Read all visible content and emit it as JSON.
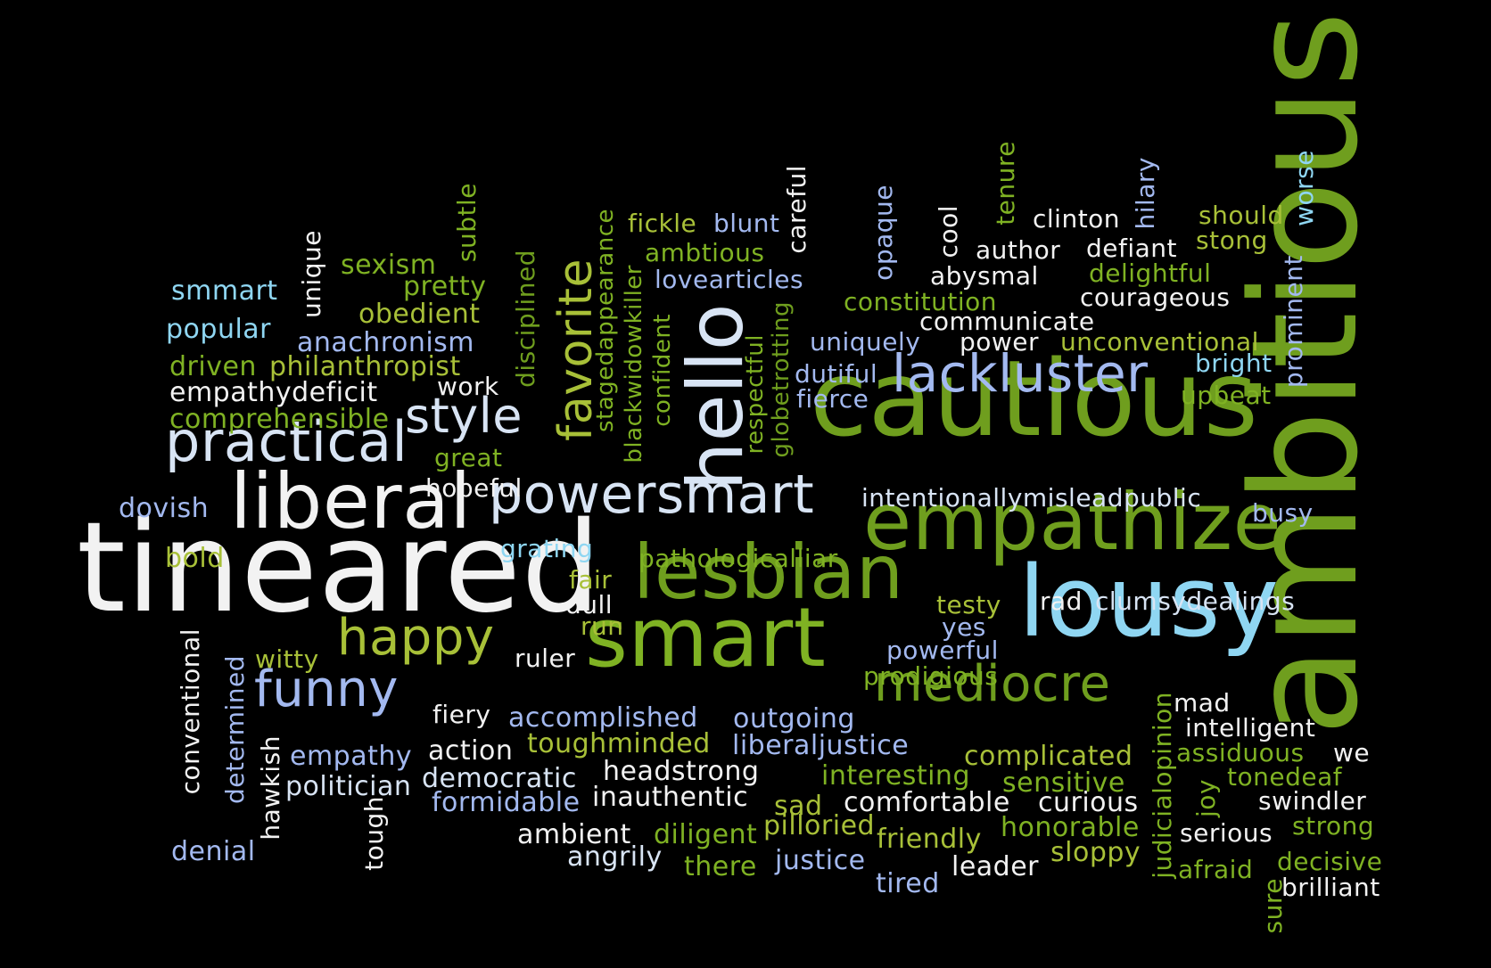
{
  "palette": [
    "#f2f2f2",
    "#7fb223",
    "#8fd6f2",
    "#a3b9f0",
    "#a8c038",
    "#6f9e1e",
    "#d8e4f4"
  ],
  "words": [
    {
      "id": "tineared",
      "text": "tineared",
      "c": 0
    },
    {
      "id": "ambitious",
      "text": "ambitious",
      "c": 5
    },
    {
      "id": "cautious",
      "text": "cautious",
      "c": 5
    },
    {
      "id": "lousy",
      "text": "lousy",
      "c": 2
    },
    {
      "id": "empathize",
      "text": "empathize",
      "c": 5
    },
    {
      "id": "liberal",
      "text": "liberal",
      "c": 0
    },
    {
      "id": "smart",
      "text": "smart",
      "c": 1
    },
    {
      "id": "lesbian",
      "text": "lesbian",
      "c": 5
    },
    {
      "id": "powersmart",
      "text": "powersmart",
      "c": 6
    },
    {
      "id": "hello",
      "text": "hello",
      "c": 6
    },
    {
      "id": "practical",
      "text": "practical",
      "c": 6
    },
    {
      "id": "mediocre",
      "text": "mediocre",
      "c": 5
    },
    {
      "id": "lackluster",
      "text": "lackluster",
      "c": 3
    },
    {
      "id": "style",
      "text": "style",
      "c": 6
    },
    {
      "id": "happy",
      "text": "happy",
      "c": 4
    },
    {
      "id": "funny",
      "text": "funny",
      "c": 3
    },
    {
      "id": "favorite",
      "text": "favorite",
      "c": 4
    },
    {
      "id": "intentionallymisleadpublic",
      "text": "intentionallymisleadpublic",
      "c": 6
    },
    {
      "id": "pathologicalliar",
      "text": "pathologicalliar",
      "c": 1
    },
    {
      "id": "clumsydealings",
      "text": "clumsydealings",
      "c": 6
    },
    {
      "id": "smmart",
      "text": "smmart",
      "c": 2
    },
    {
      "id": "popular",
      "text": "popular",
      "c": 2
    },
    {
      "id": "sexism",
      "text": "sexism",
      "c": 1
    },
    {
      "id": "pretty",
      "text": "pretty",
      "c": 1
    },
    {
      "id": "obedient",
      "text": "obedient",
      "c": 4
    },
    {
      "id": "anachronism",
      "text": "anachronism",
      "c": 3
    },
    {
      "id": "driven",
      "text": "driven",
      "c": 1
    },
    {
      "id": "philanthropist",
      "text": "philanthropist",
      "c": 4
    },
    {
      "id": "empathydeficit",
      "text": "empathydeficit",
      "c": 0
    },
    {
      "id": "comprehensible",
      "text": "comprehensible",
      "c": 1
    },
    {
      "id": "work",
      "text": "work",
      "c": 0
    },
    {
      "id": "great",
      "text": "great",
      "c": 1
    },
    {
      "id": "hopeful",
      "text": "hopeful",
      "c": 0
    },
    {
      "id": "dovish",
      "text": "dovish",
      "c": 3
    },
    {
      "id": "bold",
      "text": "bold",
      "c": 4
    },
    {
      "id": "grating",
      "text": "grating",
      "c": 2
    },
    {
      "id": "fair",
      "text": "fair",
      "c": 4
    },
    {
      "id": "dull",
      "text": "dull",
      "c": 0
    },
    {
      "id": "run",
      "text": "run",
      "c": 4
    },
    {
      "id": "witty",
      "text": "witty",
      "c": 4
    },
    {
      "id": "ruler",
      "text": "ruler",
      "c": 0
    },
    {
      "id": "fiery",
      "text": "fiery",
      "c": 0
    },
    {
      "id": "accomplished",
      "text": "accomplished",
      "c": 3
    },
    {
      "id": "outgoing",
      "text": "outgoing",
      "c": 3
    },
    {
      "id": "toughminded",
      "text": "toughminded",
      "c": 4
    },
    {
      "id": "liberaljustice",
      "text": "liberaljustice",
      "c": 3
    },
    {
      "id": "empathy",
      "text": "empathy",
      "c": 3
    },
    {
      "id": "action",
      "text": "action",
      "c": 0
    },
    {
      "id": "headstrong",
      "text": "headstrong",
      "c": 0
    },
    {
      "id": "politician",
      "text": "politician",
      "c": 6
    },
    {
      "id": "democratic",
      "text": "democratic",
      "c": 6
    },
    {
      "id": "formidable",
      "text": "formidable",
      "c": 3
    },
    {
      "id": "inauthentic",
      "text": "inauthentic",
      "c": 0
    },
    {
      "id": "interesting",
      "text": "interesting",
      "c": 1
    },
    {
      "id": "sad",
      "text": "sad",
      "c": 4
    },
    {
      "id": "comfortable",
      "text": "comfortable",
      "c": 0
    },
    {
      "id": "curious",
      "text": "curious",
      "c": 0
    },
    {
      "id": "complicated",
      "text": "complicated",
      "c": 4
    },
    {
      "id": "sensitive",
      "text": "sensitive",
      "c": 1
    },
    {
      "id": "denial",
      "text": "denial",
      "c": 3
    },
    {
      "id": "ambient",
      "text": "ambient",
      "c": 0
    },
    {
      "id": "diligent",
      "text": "diligent",
      "c": 1
    },
    {
      "id": "pilloried",
      "text": "pilloried",
      "c": 4
    },
    {
      "id": "friendly",
      "text": "friendly",
      "c": 4
    },
    {
      "id": "honorable",
      "text": "honorable",
      "c": 1
    },
    {
      "id": "angrily",
      "text": "angrily",
      "c": 6
    },
    {
      "id": "there",
      "text": "there",
      "c": 1
    },
    {
      "id": "justice",
      "text": "justice",
      "c": 3
    },
    {
      "id": "tired",
      "text": "tired",
      "c": 3
    },
    {
      "id": "leader",
      "text": "leader",
      "c": 0
    },
    {
      "id": "sloppy",
      "text": "sloppy",
      "c": 4
    },
    {
      "id": "fickle",
      "text": "fickle",
      "c": 4
    },
    {
      "id": "blunt",
      "text": "blunt",
      "c": 3
    },
    {
      "id": "ambtious",
      "text": "ambtious",
      "c": 1
    },
    {
      "id": "lovearticles",
      "text": "lovearticles",
      "c": 3
    },
    {
      "id": "constitution",
      "text": "constitution",
      "c": 1
    },
    {
      "id": "communicate",
      "text": "communicate",
      "c": 0
    },
    {
      "id": "uniquely",
      "text": "uniquely",
      "c": 3
    },
    {
      "id": "power",
      "text": "power",
      "c": 0
    },
    {
      "id": "unconventional",
      "text": "unconventional",
      "c": 4
    },
    {
      "id": "dutiful",
      "text": "dutiful",
      "c": 3
    },
    {
      "id": "fierce",
      "text": "fierce",
      "c": 3
    },
    {
      "id": "clinton",
      "text": "clinton",
      "c": 0
    },
    {
      "id": "author",
      "text": "author",
      "c": 0
    },
    {
      "id": "defiant",
      "text": "defiant",
      "c": 0
    },
    {
      "id": "abysmal",
      "text": "abysmal",
      "c": 0
    },
    {
      "id": "delightful",
      "text": "delightful",
      "c": 1
    },
    {
      "id": "courageous",
      "text": "courageous",
      "c": 0
    },
    {
      "id": "should",
      "text": "should",
      "c": 4
    },
    {
      "id": "stong",
      "text": "stong",
      "c": 4
    },
    {
      "id": "bright",
      "text": "bright",
      "c": 2
    },
    {
      "id": "upbeat",
      "text": "upbeat",
      "c": 1
    },
    {
      "id": "busy",
      "text": "busy",
      "c": 3
    },
    {
      "id": "testy",
      "text": "testy",
      "c": 4
    },
    {
      "id": "yes",
      "text": "yes",
      "c": 3
    },
    {
      "id": "rad",
      "text": "rad",
      "c": 0
    },
    {
      "id": "powerful",
      "text": "powerful",
      "c": 3
    },
    {
      "id": "prodigious",
      "text": "prodigious",
      "c": 1
    },
    {
      "id": "mad",
      "text": "mad",
      "c": 0
    },
    {
      "id": "intelligent",
      "text": "intelligent",
      "c": 0
    },
    {
      "id": "assiduous",
      "text": "assiduous",
      "c": 1
    },
    {
      "id": "we",
      "text": "we",
      "c": 0
    },
    {
      "id": "tonedeaf",
      "text": "tonedeaf",
      "c": 1
    },
    {
      "id": "swindler",
      "text": "swindler",
      "c": 0
    },
    {
      "id": "strong",
      "text": "strong",
      "c": 1
    },
    {
      "id": "serious",
      "text": "serious",
      "c": 0
    },
    {
      "id": "decisive",
      "text": "decisive",
      "c": 1
    },
    {
      "id": "afraid",
      "text": "afraid",
      "c": 1
    },
    {
      "id": "brilliant",
      "text": "brilliant",
      "c": 0
    },
    {
      "id": "unique",
      "text": "unique",
      "c": 0
    },
    {
      "id": "subtle",
      "text": "subtle",
      "c": 1
    },
    {
      "id": "disciplined",
      "text": "disciplined",
      "c": 5
    },
    {
      "id": "stagedappearance",
      "text": "stagedappearance",
      "c": 1
    },
    {
      "id": "blackwidowkiller",
      "text": "blackwidowkiller",
      "c": 1
    },
    {
      "id": "confident",
      "text": "confident",
      "c": 1
    },
    {
      "id": "respectful",
      "text": "respectful",
      "c": 1
    },
    {
      "id": "globetrotting",
      "text": "globetrotting",
      "c": 5
    },
    {
      "id": "careful",
      "text": "careful",
      "c": 0
    },
    {
      "id": "opaque",
      "text": "opaque",
      "c": 3
    },
    {
      "id": "cool",
      "text": "cool",
      "c": 0
    },
    {
      "id": "tenure",
      "text": "tenure",
      "c": 1
    },
    {
      "id": "hilary",
      "text": "hilary",
      "c": 3
    },
    {
      "id": "worse",
      "text": "worse",
      "c": 2
    },
    {
      "id": "prominent",
      "text": "prominent",
      "c": 3
    },
    {
      "id": "conventional",
      "text": "conventional",
      "c": 0
    },
    {
      "id": "determined",
      "text": "determined",
      "c": 3
    },
    {
      "id": "hawkish",
      "text": "hawkish",
      "c": 0
    },
    {
      "id": "tough",
      "text": "tough",
      "c": 0
    },
    {
      "id": "judicialopinion",
      "text": "judicialopinion",
      "c": 1
    },
    {
      "id": "joy",
      "text": "joy",
      "c": 1
    },
    {
      "id": "sure",
      "text": "sure",
      "c": 1
    }
  ]
}
